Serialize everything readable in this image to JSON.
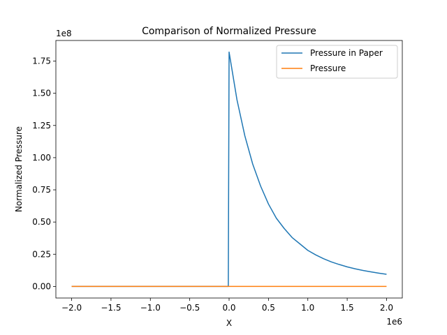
{
  "chart_data": {
    "type": "line",
    "title": "Comparison of Normalized Pressure",
    "xlabel": "X",
    "ylabel": "Normalized Pressure",
    "x_offset_label": "1e6",
    "y_offset_label": "1e8",
    "xlim": [
      -2.2,
      2.2
    ],
    "ylim": [
      -0.09,
      1.91
    ],
    "x_ticks": [
      -2.0,
      -1.5,
      -1.0,
      -0.5,
      0.0,
      0.5,
      1.0,
      1.5,
      2.0
    ],
    "x_tick_labels": [
      "−2.0",
      "−1.5",
      "−1.0",
      "−0.5",
      "0.0",
      "0.5",
      "1.0",
      "1.5",
      "2.0"
    ],
    "y_ticks": [
      0.0,
      0.25,
      0.5,
      0.75,
      1.0,
      1.25,
      1.5,
      1.75
    ],
    "y_tick_labels": [
      "0.00",
      "0.25",
      "0.50",
      "0.75",
      "1.00",
      "1.25",
      "1.50",
      "1.75"
    ],
    "grid": false,
    "legend_position": "top-right",
    "series": [
      {
        "name": "Pressure in Paper",
        "color": "#1f77b4",
        "x": [
          -2.0,
          -0.01,
          -0.01,
          0.0,
          0.1,
          0.2,
          0.3,
          0.4,
          0.5,
          0.6,
          0.7,
          0.8,
          0.9,
          1.0,
          1.1,
          1.2,
          1.3,
          1.4,
          1.5,
          1.6,
          1.7,
          1.8,
          1.9,
          2.0
        ],
        "y": [
          0.0,
          0.0,
          0.0,
          1.82,
          1.45,
          1.17,
          0.95,
          0.78,
          0.64,
          0.53,
          0.45,
          0.38,
          0.33,
          0.28,
          0.245,
          0.215,
          0.19,
          0.17,
          0.152,
          0.137,
          0.124,
          0.113,
          0.103,
          0.094
        ]
      },
      {
        "name": "Pressure",
        "color": "#ff7f0e",
        "x": [
          -2.0,
          0.0,
          2.0
        ],
        "y": [
          0.0,
          0.0,
          0.0
        ]
      }
    ]
  }
}
